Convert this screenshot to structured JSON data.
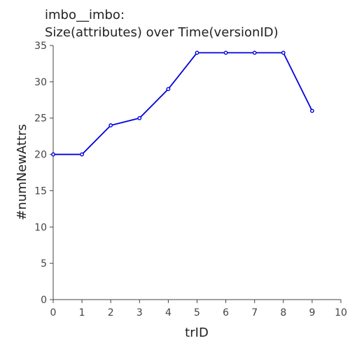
{
  "chart_data": {
    "type": "line",
    "title": [
      "imbo__imbo:",
      "Size(attributes) over Time(versionID)"
    ],
    "xlabel": "trID",
    "ylabel": "#numNewAttrs",
    "xlim": [
      0,
      10
    ],
    "ylim": [
      0,
      35
    ],
    "xticks": [
      0,
      1,
      2,
      3,
      4,
      5,
      6,
      7,
      8,
      9,
      10
    ],
    "yticks": [
      0,
      5,
      10,
      15,
      20,
      25,
      30,
      35
    ],
    "grid": false,
    "series": [
      {
        "color": "#0000dd",
        "x": [
          0,
          1,
          2,
          3,
          4,
          5,
          6,
          7,
          8,
          9
        ],
        "y": [
          20,
          20,
          24,
          25,
          29,
          34,
          34,
          34,
          34,
          26
        ]
      }
    ]
  }
}
